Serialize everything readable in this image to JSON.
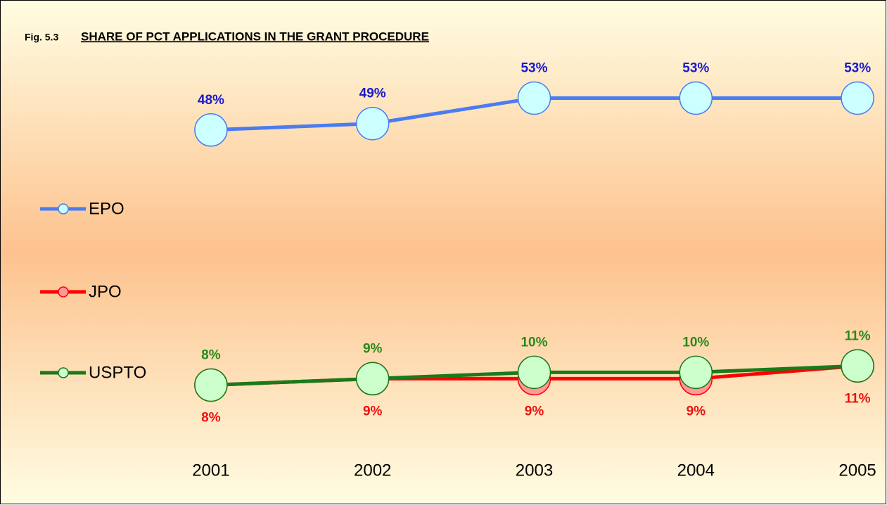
{
  "chart_data": {
    "type": "line",
    "figure_label": "Fig. 5.3",
    "title": "SHARE OF PCT APPLICATIONS IN THE GRANT PROCEDURE",
    "categories": [
      "2001",
      "2002",
      "2003",
      "2004",
      "2005"
    ],
    "ylim": [
      0,
      60
    ],
    "legend": "left",
    "series": [
      {
        "name": "EPO",
        "color": "#4a7cf0",
        "marker_color": "#ccffff",
        "label_color": "#1a1acc",
        "label_position": "above",
        "values": [
          48,
          49,
          53,
          53,
          53
        ],
        "value_labels": [
          "48%",
          "49%",
          "53%",
          "53%",
          "53%"
        ]
      },
      {
        "name": "JPO",
        "color": "#ff0000",
        "marker_color": "#ff9999",
        "label_color": "#ee1111",
        "label_position": "below",
        "values": [
          8,
          9,
          9,
          9,
          11
        ],
        "value_labels": [
          "8%",
          "9%",
          "9%",
          "9%",
          "11%"
        ]
      },
      {
        "name": "USPTO",
        "color": "#1a7a1a",
        "marker_color": "#ccffcc",
        "label_color": "#2a8a1a",
        "label_position": "above",
        "values": [
          8,
          9,
          10,
          10,
          11
        ],
        "value_labels": [
          "8%",
          "9%",
          "10%",
          "10%",
          "11%"
        ]
      }
    ]
  }
}
